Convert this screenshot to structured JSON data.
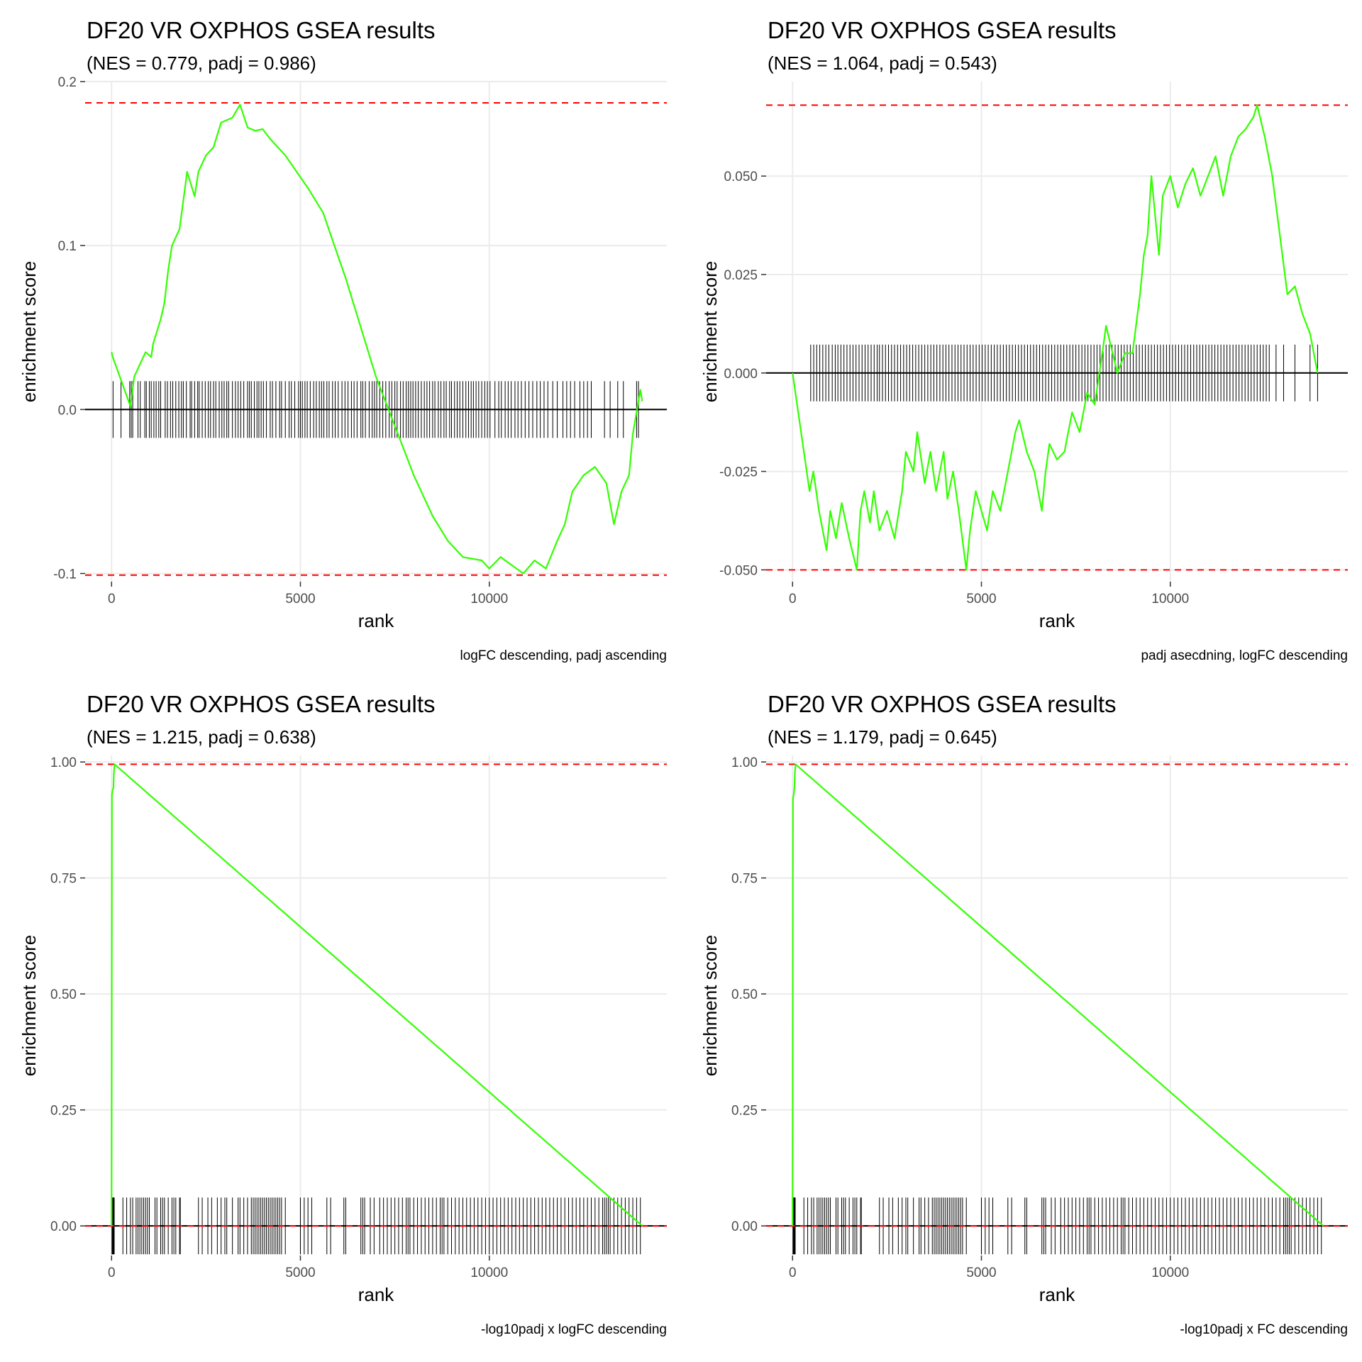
{
  "chart_data": [
    {
      "type": "line",
      "title": "DF20 VR OXPHOS GSEA results",
      "subtitle": "(NES = 0.779, padj = 0.986)",
      "xlabel": "rank",
      "ylabel": "enrichment score",
      "caption": "logFC descending, padj ascending",
      "xlim": [
        -700,
        14700
      ],
      "ylim": [
        -0.105,
        0.2
      ],
      "x_ticks": [
        0,
        5000,
        10000
      ],
      "x_tick_labels": [
        "0",
        "5000",
        "10000"
      ],
      "y_ticks": [
        -0.1,
        0,
        0.1,
        0.2
      ],
      "y_tick_labels": [
        "-0.1",
        "0.0",
        "0.1",
        "0.2"
      ],
      "max_es": 0.187,
      "min_es": -0.101,
      "grid": true,
      "line_color": "#33ff00",
      "threshold_color": "#ff0000",
      "series": [
        {
          "x": [
            0,
            30,
            500,
            600,
            900,
            1050,
            1100,
            1300,
            1400,
            1500,
            1600,
            1800,
            2000,
            2200,
            2300,
            2500,
            2700,
            2900,
            3200,
            3400,
            3600,
            3800,
            4000,
            4200,
            4400,
            4600,
            4900,
            5200,
            5600,
            5900,
            6200,
            6600,
            7000,
            7500,
            8000,
            8500,
            8900,
            9300,
            9800,
            10000,
            10300,
            10600,
            10900,
            11200,
            11500,
            11800,
            12000,
            12200,
            12500,
            12800,
            13100,
            13300,
            13500,
            13700,
            13800,
            14000,
            14050
          ],
          "values": [
            0.035,
            0.032,
            0.002,
            0.02,
            0.035,
            0.032,
            0.04,
            0.055,
            0.065,
            0.085,
            0.1,
            0.11,
            0.145,
            0.13,
            0.145,
            0.155,
            0.16,
            0.175,
            0.178,
            0.186,
            0.172,
            0.17,
            0.171,
            0.165,
            0.16,
            0.155,
            0.145,
            0.135,
            0.12,
            0.1,
            0.08,
            0.05,
            0.02,
            -0.01,
            -0.04,
            -0.065,
            -0.08,
            -0.09,
            -0.092,
            -0.097,
            -0.09,
            -0.095,
            -0.1,
            -0.092,
            -0.097,
            -0.08,
            -0.07,
            -0.05,
            -0.04,
            -0.035,
            -0.045,
            -0.07,
            -0.05,
            -0.04,
            -0.015,
            0.012,
            0.005
          ]
        }
      ],
      "rug_ranks": [
        40,
        250,
        480,
        520,
        560,
        700,
        760,
        880,
        920,
        1000,
        1050,
        1120,
        1180,
        1250,
        1300,
        1420,
        1480,
        1560,
        1620,
        1700,
        1780,
        1850,
        1900,
        1980,
        2080,
        2120,
        2200,
        2280,
        2320,
        2400,
        2480,
        2560,
        2620,
        2700,
        2760,
        2850,
        2920,
        2980,
        3050,
        3100,
        3200,
        3280,
        3350,
        3420,
        3500,
        3600,
        3650,
        3700,
        3780,
        3850,
        3900,
        3960,
        4020,
        4100,
        4200,
        4260,
        4350,
        4450,
        4500,
        4600,
        4700,
        4760,
        4850,
        4950,
        5000,
        5050,
        5120,
        5180,
        5260,
        5350,
        5420,
        5500,
        5560,
        5620,
        5700,
        5760,
        5850,
        5920,
        6000,
        6100,
        6180,
        6260,
        6350,
        6420,
        6500,
        6600,
        6650,
        6720,
        6820,
        6900,
        6960,
        7020,
        7100,
        7180,
        7260,
        7350,
        7420,
        7500,
        7560,
        7650,
        7720,
        7800,
        7860,
        7920,
        7980,
        8050,
        8120,
        8200,
        8280,
        8350,
        8420,
        8500,
        8560,
        8650,
        8720,
        8800,
        8860,
        8950,
        9000,
        9080,
        9150,
        9220,
        9300,
        9380,
        9450,
        9520,
        9580,
        9650,
        9720,
        9800,
        9880,
        9950,
        10020,
        10150,
        10250,
        10320,
        10420,
        10500,
        10580,
        10680,
        10760,
        10850,
        10950,
        11050,
        11150,
        11260,
        11350,
        11450,
        11550,
        11680,
        11800,
        11950,
        12050,
        12150,
        12260,
        12400,
        12500,
        12600,
        12700,
        13050,
        13200,
        13400,
        13550,
        13900,
        13950
      ]
    },
    {
      "type": "line",
      "title": "DF20 VR OXPHOS GSEA results",
      "subtitle": "(NES = 1.064, padj = 0.543)",
      "xlabel": "rank",
      "ylabel": "enrichment score",
      "caption": "padj asecdning, logFC descending",
      "xlim": [
        -700,
        14700
      ],
      "ylim": [
        -0.053,
        0.074
      ],
      "x_ticks": [
        0,
        5000,
        10000
      ],
      "x_tick_labels": [
        "0",
        "5000",
        "10000"
      ],
      "y_ticks": [
        -0.05,
        -0.025,
        0,
        0.025,
        0.05
      ],
      "y_tick_labels": [
        "-0.050",
        "-0.025",
        "0.000",
        "0.025",
        "0.050"
      ],
      "max_es": 0.068,
      "min_es": -0.05,
      "grid": true,
      "line_color": "#33ff00",
      "threshold_color": "#ff0000",
      "series": [
        {
          "x": [
            0,
            450,
            550,
            700,
            900,
            1000,
            1150,
            1300,
            1500,
            1700,
            1800,
            1900,
            2050,
            2150,
            2300,
            2500,
            2700,
            2900,
            3000,
            3200,
            3300,
            3500,
            3650,
            3800,
            4000,
            4100,
            4250,
            4400,
            4600,
            4700,
            4850,
            5000,
            5150,
            5300,
            5500,
            5700,
            5900,
            6000,
            6200,
            6400,
            6600,
            6700,
            6800,
            7000,
            7200,
            7400,
            7600,
            7800,
            8000,
            8200,
            8300,
            8400,
            8600,
            8800,
            9000,
            9200,
            9300,
            9400,
            9500,
            9600,
            9700,
            9800,
            10000,
            10200,
            10400,
            10600,
            10800,
            11000,
            11200,
            11400,
            11600,
            11800,
            12000,
            12200,
            12300,
            12500,
            12700,
            12900,
            13100,
            13300,
            13500,
            13700,
            13900
          ],
          "values": [
            0,
            -0.03,
            -0.025,
            -0.035,
            -0.045,
            -0.035,
            -0.042,
            -0.033,
            -0.042,
            -0.05,
            -0.035,
            -0.03,
            -0.038,
            -0.03,
            -0.04,
            -0.035,
            -0.042,
            -0.03,
            -0.02,
            -0.025,
            -0.015,
            -0.028,
            -0.02,
            -0.03,
            -0.02,
            -0.032,
            -0.025,
            -0.035,
            -0.05,
            -0.04,
            -0.03,
            -0.035,
            -0.04,
            -0.03,
            -0.035,
            -0.025,
            -0.015,
            -0.012,
            -0.02,
            -0.025,
            -0.035,
            -0.025,
            -0.018,
            -0.022,
            -0.02,
            -0.01,
            -0.015,
            -0.005,
            -0.008,
            0.005,
            0.012,
            0.008,
            0.0,
            0.005,
            0.005,
            0.02,
            0.03,
            0.035,
            0.05,
            0.04,
            0.03,
            0.045,
            0.05,
            0.042,
            0.048,
            0.052,
            0.045,
            0.05,
            0.055,
            0.045,
            0.055,
            0.06,
            0.062,
            0.065,
            0.068,
            0.06,
            0.05,
            0.035,
            0.02,
            0.022,
            0.015,
            0.01,
            0.0
          ]
        }
      ],
      "rug_ranks": [
        480,
        560,
        640,
        720,
        800,
        880,
        960,
        1050,
        1130,
        1200,
        1280,
        1360,
        1440,
        1520,
        1600,
        1680,
        1760,
        1840,
        1920,
        2000,
        2080,
        2160,
        2240,
        2300,
        2380,
        2460,
        2540,
        2620,
        2700,
        2780,
        2860,
        2940,
        3020,
        3100,
        3180,
        3260,
        3340,
        3420,
        3500,
        3580,
        3660,
        3740,
        3820,
        3900,
        3980,
        4060,
        4140,
        4220,
        4300,
        4380,
        4460,
        4540,
        4620,
        4700,
        4780,
        4860,
        4940,
        5020,
        5100,
        5180,
        5260,
        5340,
        5420,
        5500,
        5580,
        5660,
        5740,
        5820,
        5900,
        5980,
        6060,
        6140,
        6220,
        6300,
        6380,
        6460,
        6540,
        6620,
        6700,
        6780,
        6860,
        6940,
        7020,
        7100,
        7180,
        7260,
        7340,
        7420,
        7500,
        7580,
        7660,
        7740,
        7820,
        7900,
        7980,
        8060,
        8140,
        8220,
        8300,
        8380,
        8460,
        8540,
        8620,
        8700,
        8780,
        8860,
        8940,
        9020,
        9100,
        9180,
        9260,
        9340,
        9420,
        9500,
        9580,
        9660,
        9740,
        9820,
        9900,
        9980,
        10060,
        10140,
        10220,
        10300,
        10380,
        10460,
        10540,
        10620,
        10700,
        10780,
        10860,
        10940,
        11020,
        11100,
        11180,
        11260,
        11340,
        11420,
        11500,
        11580,
        11660,
        11740,
        11820,
        11900,
        11980,
        12060,
        12140,
        12220,
        12300,
        12380,
        12460,
        12540,
        12620,
        12800,
        13000,
        13300,
        13700,
        13900
      ]
    },
    {
      "type": "line",
      "title": "DF20 VR OXPHOS GSEA results",
      "subtitle": "(NES = 1.215, padj = 0.638)",
      "xlabel": "rank",
      "ylabel": "enrichment score",
      "caption": "-log10padj x logFC descending",
      "xlim": [
        -700,
        14700
      ],
      "ylim": [
        -0.064,
        1.014
      ],
      "x_ticks": [
        0,
        5000,
        10000
      ],
      "x_tick_labels": [
        "0",
        "5000",
        "10000"
      ],
      "y_ticks": [
        0,
        0.25,
        0.5,
        0.75,
        1.0
      ],
      "y_tick_labels": [
        "0.00",
        "0.25",
        "0.50",
        "0.75",
        "1.00"
      ],
      "max_es": 0.995,
      "min_es": 0.0,
      "grid": true,
      "line_color": "#33ff00",
      "threshold_color": "#ff0000",
      "series": [
        {
          "x": [
            0,
            0,
            10,
            30,
            50,
            60,
            80,
            14050
          ],
          "values": [
            0.0,
            0.06,
            0.93,
            0.94,
            0.945,
            0.975,
            0.995,
            0.0
          ]
        }
      ],
      "rug_ranks": [
        10,
        20,
        30,
        40,
        50,
        60,
        70,
        300,
        400,
        500,
        560,
        650,
        700,
        750,
        800,
        850,
        900,
        950,
        1000,
        1150,
        1200,
        1300,
        1350,
        1400,
        1500,
        1600,
        1650,
        1700,
        1800,
        1820,
        2300,
        2400,
        2550,
        2650,
        2800,
        2900,
        3000,
        3050,
        3200,
        3350,
        3400,
        3500,
        3600,
        3700,
        3750,
        3800,
        3850,
        3900,
        3950,
        4000,
        4050,
        4100,
        4150,
        4200,
        4250,
        4300,
        4350,
        4400,
        4450,
        4500,
        4600,
        5000,
        5100,
        5200,
        5300,
        5700,
        5800,
        6150,
        6200,
        6600,
        6650,
        6700,
        6850,
        6950,
        7100,
        7200,
        7300,
        7400,
        7500,
        7600,
        7700,
        7800,
        7850,
        7900,
        8000,
        8100,
        8200,
        8300,
        8400,
        8500,
        8600,
        8700,
        8750,
        8800,
        8900,
        9000,
        9100,
        9200,
        9300,
        9400,
        9500,
        9600,
        9700,
        9800,
        9900,
        10000,
        10100,
        10200,
        10300,
        10400,
        10500,
        10600,
        10700,
        10800,
        10900,
        11000,
        11100,
        11200,
        11300,
        11400,
        11500,
        11600,
        11700,
        11800,
        11900,
        12000,
        12100,
        12200,
        12300,
        12400,
        12500,
        12600,
        12700,
        12800,
        12900,
        13000,
        13050,
        13100,
        13150,
        13200,
        13300,
        13400,
        13500,
        13600,
        13700,
        13800,
        13900,
        14000
      ]
    },
    {
      "type": "line",
      "title": "DF20 VR OXPHOS GSEA results",
      "subtitle": "(NES = 1.179, padj = 0.645)",
      "xlabel": "rank",
      "ylabel": "enrichment score",
      "caption": "-log10padj x FC descending",
      "xlim": [
        -700,
        14700
      ],
      "ylim": [
        -0.064,
        1.014
      ],
      "x_ticks": [
        0,
        5000,
        10000
      ],
      "x_tick_labels": [
        "0",
        "5000",
        "10000"
      ],
      "y_ticks": [
        0,
        0.25,
        0.5,
        0.75,
        1.0
      ],
      "y_tick_labels": [
        "0.00",
        "0.25",
        "0.50",
        "0.75",
        "1.00"
      ],
      "max_es": 0.995,
      "min_es": 0.0,
      "grid": true,
      "line_color": "#33ff00",
      "threshold_color": "#ff0000",
      "series": [
        {
          "x": [
            0,
            0,
            10,
            30,
            50,
            60,
            80,
            14050
          ],
          "values": [
            0.0,
            0.06,
            0.92,
            0.93,
            0.945,
            0.975,
            0.995,
            0.0
          ]
        }
      ],
      "rug_ranks": [
        10,
        20,
        30,
        40,
        50,
        60,
        70,
        300,
        400,
        500,
        560,
        650,
        700,
        750,
        800,
        850,
        900,
        950,
        1000,
        1150,
        1200,
        1300,
        1350,
        1400,
        1500,
        1600,
        1650,
        1700,
        1800,
        1820,
        2300,
        2400,
        2550,
        2650,
        2800,
        2900,
        3000,
        3050,
        3200,
        3350,
        3400,
        3500,
        3600,
        3700,
        3750,
        3800,
        3850,
        3900,
        3950,
        4000,
        4050,
        4100,
        4150,
        4200,
        4250,
        4300,
        4350,
        4400,
        4450,
        4500,
        4600,
        5000,
        5100,
        5200,
        5300,
        5700,
        5800,
        6150,
        6200,
        6600,
        6650,
        6700,
        6850,
        6950,
        7100,
        7200,
        7300,
        7400,
        7500,
        7600,
        7700,
        7800,
        7850,
        7900,
        8000,
        8100,
        8200,
        8300,
        8400,
        8500,
        8600,
        8700,
        8750,
        8800,
        8900,
        9000,
        9100,
        9200,
        9300,
        9400,
        9500,
        9600,
        9700,
        9800,
        9900,
        10000,
        10100,
        10200,
        10300,
        10400,
        10500,
        10600,
        10700,
        10800,
        10900,
        11000,
        11100,
        11200,
        11300,
        11400,
        11500,
        11600,
        11700,
        11800,
        11900,
        12000,
        12100,
        12200,
        12300,
        12400,
        12500,
        12600,
        12700,
        12800,
        12900,
        13000,
        13050,
        13100,
        13150,
        13200,
        13300,
        13400,
        13500,
        13600,
        13700,
        13800,
        13900,
        14000
      ]
    }
  ]
}
